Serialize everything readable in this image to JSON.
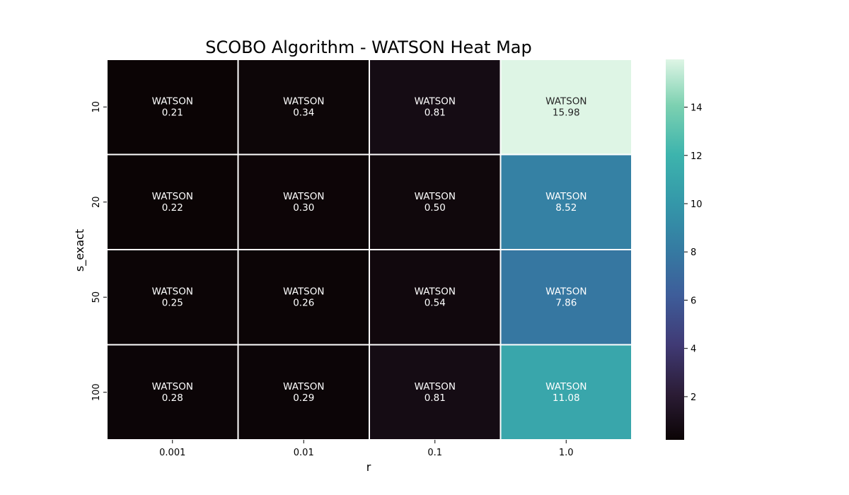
{
  "chart_data": {
    "type": "heatmap",
    "title": "SCOBO Algorithm - WATSON Heat Map",
    "xlabel": "r",
    "ylabel": "s_exact",
    "x_categories": [
      "0.001",
      "0.01",
      "0.1",
      "1.0"
    ],
    "y_categories": [
      "10",
      "20",
      "50",
      "100"
    ],
    "cell_prefix": "WATSON",
    "values": [
      [
        0.21,
        0.34,
        0.81,
        15.98
      ],
      [
        0.22,
        0.3,
        0.5,
        8.52
      ],
      [
        0.25,
        0.26,
        0.54,
        7.86
      ],
      [
        0.28,
        0.29,
        0.81,
        11.08
      ]
    ],
    "colorbar": {
      "colormap": "mako",
      "vmin": 0.21,
      "vmax": 15.98,
      "ticks": [
        2,
        4,
        6,
        8,
        10,
        12,
        14
      ]
    },
    "grid": false
  }
}
